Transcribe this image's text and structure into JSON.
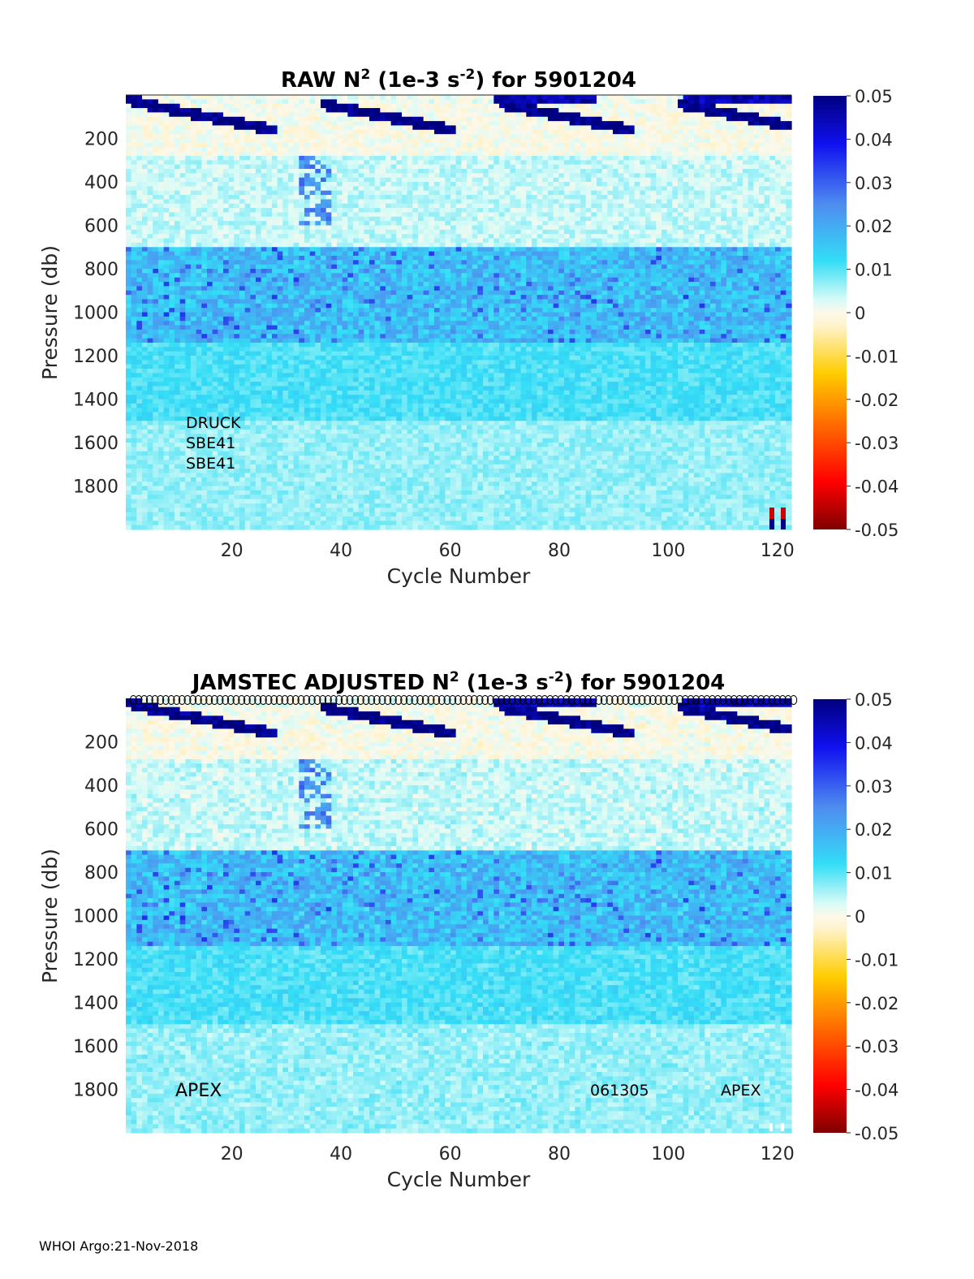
{
  "footer": "WHOI Argo:21-Nov-2018",
  "chart_data": [
    {
      "type": "heatmap",
      "title_prefix": "RAW N",
      "title_sup1": "2",
      "title_mid": " (1e-3 s",
      "title_sup2": "-2",
      "title_suffix": ") for 5901204",
      "xlabel": "Cycle Number",
      "ylabel": "Pressure (db)",
      "xlim": [
        1,
        123
      ],
      "ylim": [
        2000,
        0
      ],
      "xticks": [
        "20",
        "40",
        "60",
        "80",
        "100",
        "120"
      ],
      "yticks": [
        "200",
        "400",
        "600",
        "800",
        "1000",
        "1200",
        "1400",
        "1600",
        "1800"
      ],
      "colorbar": {
        "range": [
          -0.05,
          0.05
        ],
        "ticks": [
          "0.05",
          "0.04",
          "0.03",
          "0.02",
          "0.01",
          "0",
          "-0.01",
          "-0.02",
          "-0.03",
          "-0.04",
          "-0.05"
        ]
      },
      "annotations": [
        "DRUCK",
        "SBE41",
        "SBE41"
      ]
    },
    {
      "type": "heatmap",
      "title_prefix": "JAMSTEC  ADJUSTED N",
      "title_sup1": "2",
      "title_mid": " (1e-3 s",
      "title_sup2": "-2",
      "title_suffix": ") for 5901204",
      "xlabel": "Cycle Number",
      "ylabel": "Pressure (db)",
      "xlim": [
        1,
        123
      ],
      "ylim": [
        2000,
        0
      ],
      "xticks": [
        "20",
        "40",
        "60",
        "80",
        "100",
        "120"
      ],
      "yticks": [
        "200",
        "400",
        "600",
        "800",
        "1000",
        "1200",
        "1400",
        "1600",
        "1800"
      ],
      "colorbar": {
        "range": [
          -0.05,
          0.05
        ],
        "ticks": [
          "0.05",
          "0.04",
          "0.03",
          "0.02",
          "0.01",
          "0",
          "-0.01",
          "-0.02",
          "-0.03",
          "-0.04",
          "-0.05"
        ]
      },
      "annotations": [
        "APEX",
        "061305",
        "APEX"
      ],
      "qc_marker": "o"
    }
  ]
}
